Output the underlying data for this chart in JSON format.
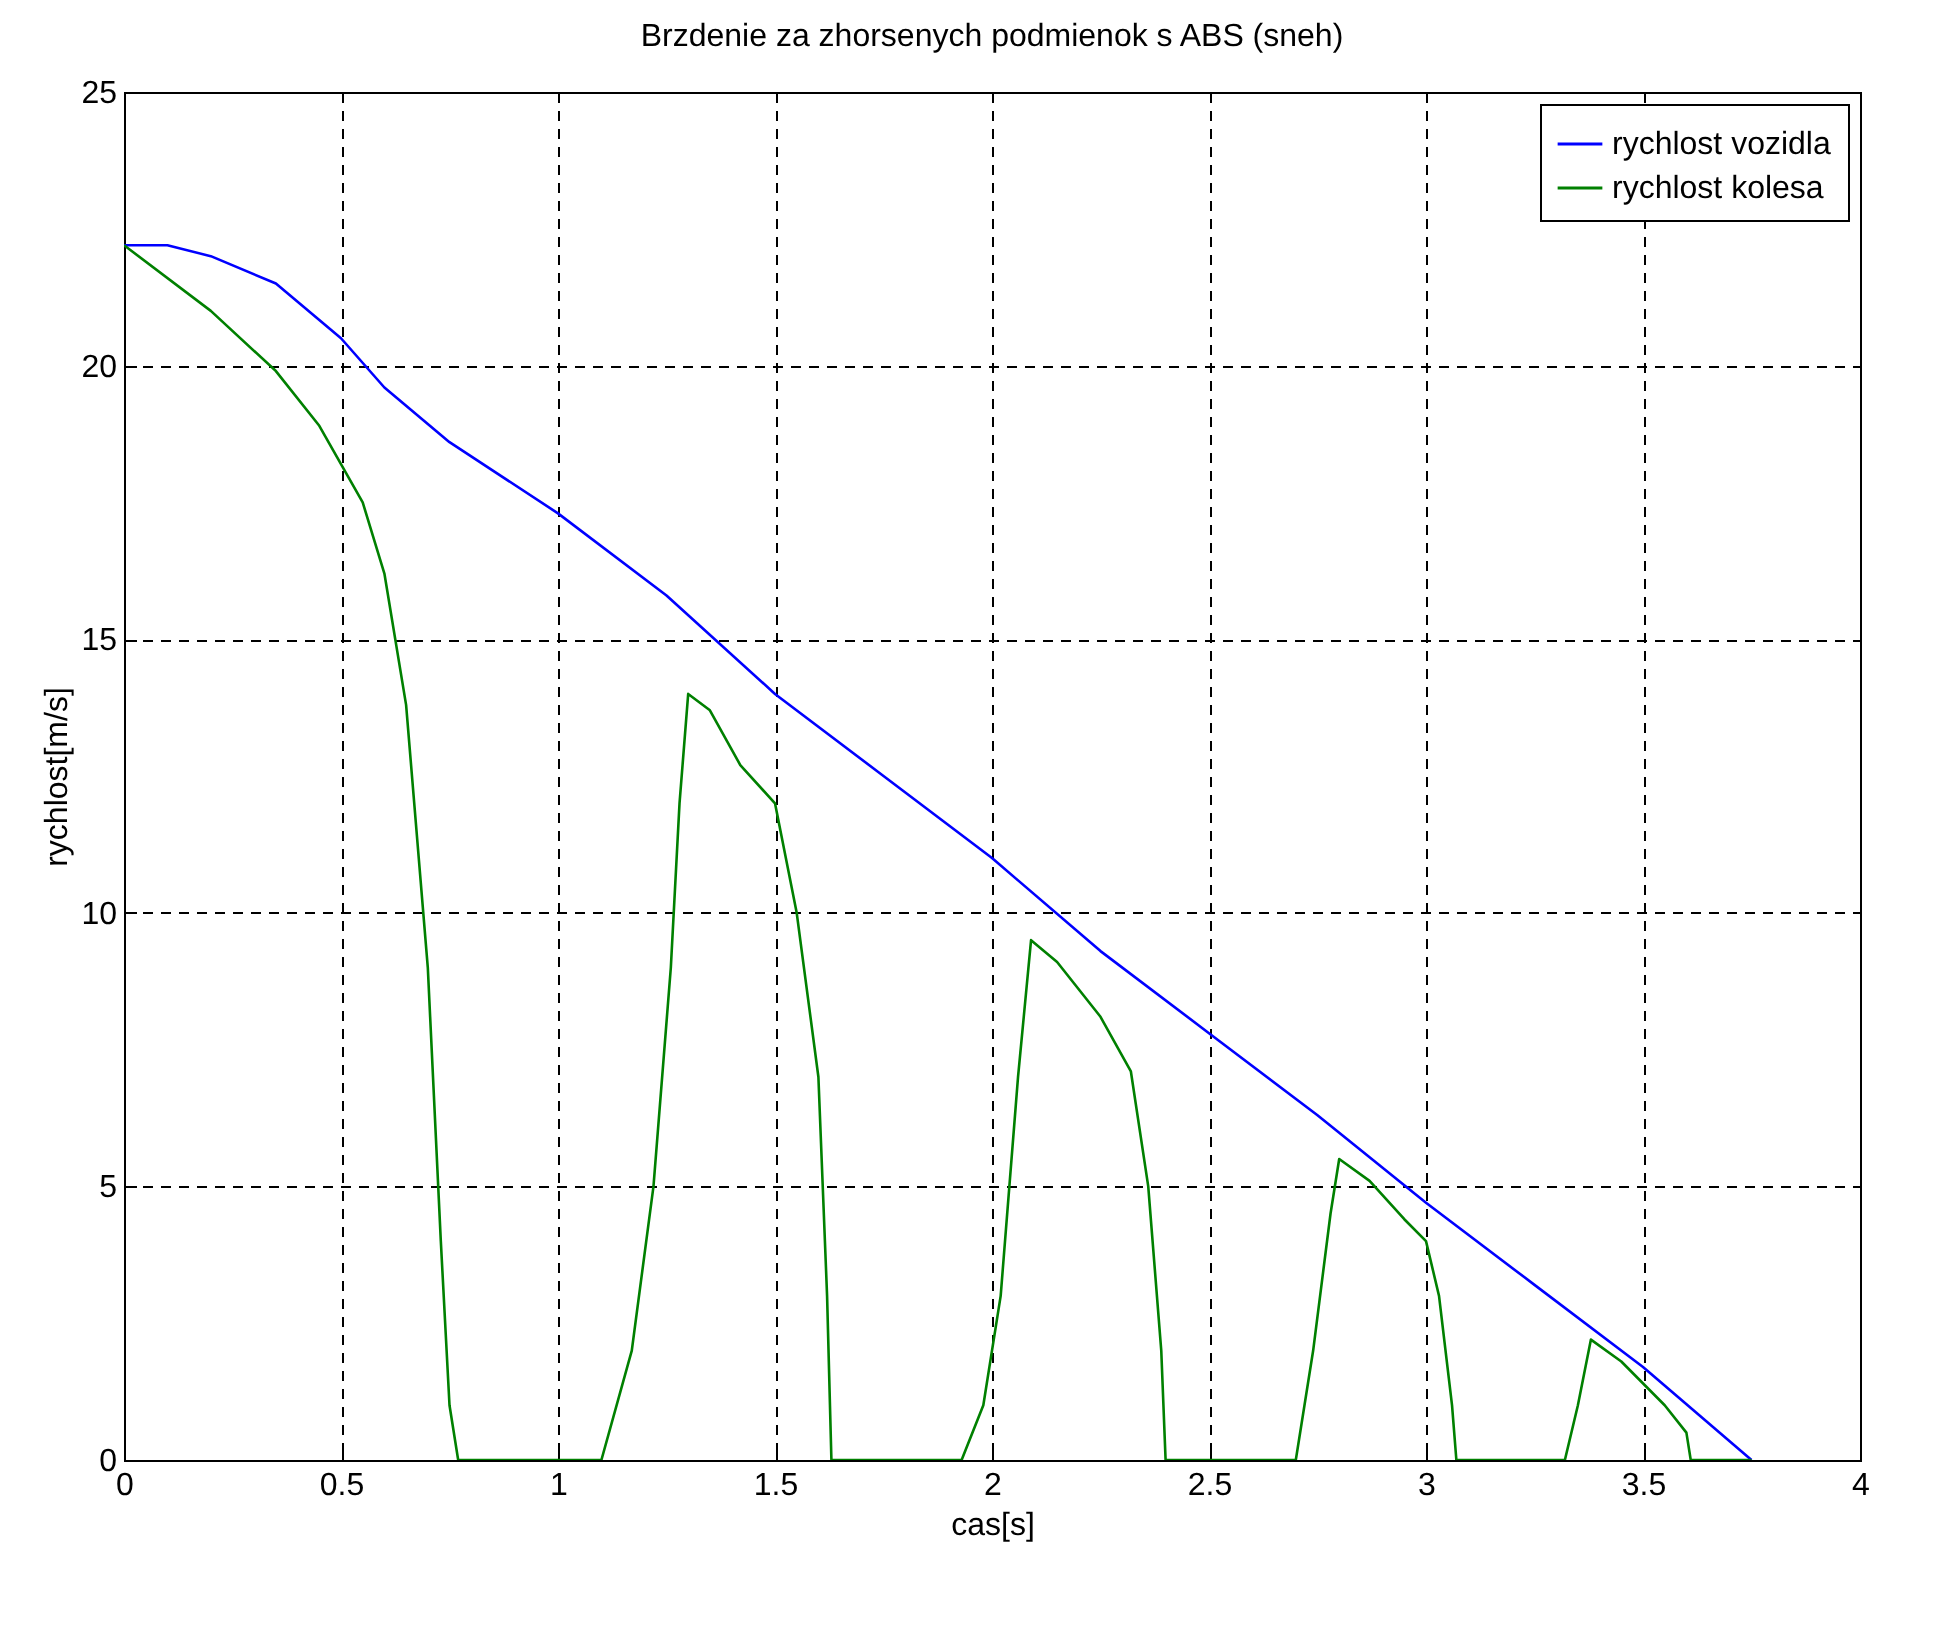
{
  "chart_data": {
    "type": "line",
    "title": "Brzdenie za zhorsenych podmienok s ABS (sneh)",
    "xlabel": "cas[s]",
    "ylabel": "rychlost[m/s]",
    "xlim": [
      0,
      4
    ],
    "xticks": [
      0,
      0.5,
      1,
      1.5,
      2,
      2.5,
      3,
      3.5,
      4
    ],
    "ylim": [
      0,
      25
    ],
    "yticks": [
      0,
      5,
      10,
      15,
      20,
      25
    ],
    "grid": true,
    "legend": "top right",
    "series": [
      {
        "name": "rychlost vozidla",
        "color": "#0000ff",
        "x": [
          0,
          0.1,
          0.2,
          0.35,
          0.5,
          0.6,
          0.75,
          1,
          1.25,
          1.5,
          1.75,
          2,
          2.25,
          2.5,
          2.75,
          3,
          3.25,
          3.5,
          3.75
        ],
        "values": [
          22.2,
          22.2,
          22.0,
          21.5,
          20.5,
          19.6,
          18.6,
          17.3,
          15.8,
          14.0,
          12.5,
          11.0,
          9.3,
          7.8,
          6.3,
          4.7,
          3.2,
          1.7,
          0
        ]
      },
      {
        "name": "rychlost kolesa",
        "color": "#008000",
        "x": [
          0,
          0.2,
          0.35,
          0.45,
          0.55,
          0.6,
          0.65,
          0.7,
          0.73,
          0.75,
          0.77,
          1.1,
          1.17,
          1.22,
          1.26,
          1.28,
          1.3,
          1.35,
          1.42,
          1.5,
          1.55,
          1.6,
          1.62,
          1.63,
          1.93,
          1.98,
          2.02,
          2.06,
          2.09,
          2.15,
          2.25,
          2.32,
          2.36,
          2.39,
          2.4,
          2.7,
          2.74,
          2.78,
          2.8,
          2.87,
          2.95,
          3.0,
          3.03,
          3.06,
          3.07,
          3.32,
          3.35,
          3.38,
          3.45,
          3.55,
          3.6,
          3.61,
          3.75
        ],
        "values": [
          22.2,
          21.0,
          19.9,
          18.9,
          17.5,
          16.2,
          13.8,
          9,
          4,
          1,
          0,
          0,
          2,
          5,
          9,
          12,
          14.0,
          13.7,
          12.7,
          12,
          10,
          7,
          3,
          0,
          0,
          1,
          3,
          7,
          9.5,
          9.1,
          8.1,
          7.1,
          5,
          2,
          0,
          0,
          2,
          4.5,
          5.5,
          5.1,
          4.4,
          4.0,
          3,
          1,
          0,
          0,
          1,
          2.2,
          1.8,
          1.0,
          0.5,
          0,
          0
        ]
      }
    ]
  }
}
